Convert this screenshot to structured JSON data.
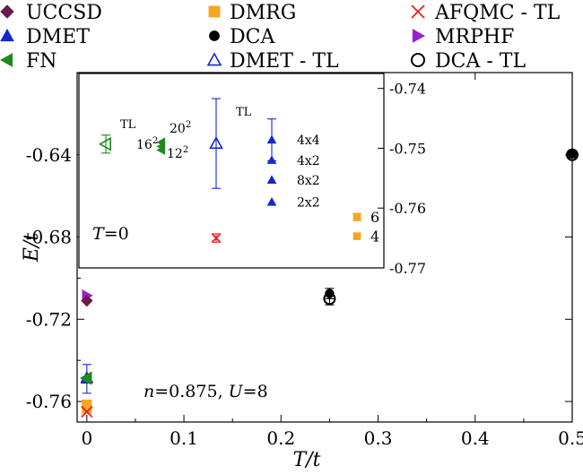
{
  "chart_data": [
    {
      "id": "main",
      "type": "scatter",
      "xlabel": "T/t",
      "ylabel": "E/t",
      "xlim": [
        -0.01,
        0.5
      ],
      "ylim": [
        -0.77,
        -0.6
      ],
      "xticks": [
        0,
        0.1,
        0.2,
        0.3,
        0.4,
        0.5
      ],
      "xtick_labels": [
        "0",
        "0.1",
        "0.2",
        "0.3",
        "0.4",
        "0.5"
      ],
      "yticks": [
        -0.76,
        -0.72,
        -0.68,
        -0.64
      ],
      "ytick_labels": [
        "-0.76",
        "-0.72",
        "-0.68",
        "-0.64"
      ],
      "grid": false,
      "legend_position": "top, above plot",
      "annotation": {
        "n": "n",
        "n_value": "=0.875, ",
        "u": "U",
        "u_value": "=8"
      },
      "series": [
        {
          "name": "UCCSD",
          "marker": "diamond-filled",
          "color": "#6a1b4d",
          "points": [
            {
              "x": 0.0,
              "y": -0.711
            }
          ]
        },
        {
          "name": "DMRG",
          "marker": "square-filled",
          "color": "#f5a623",
          "points": [
            {
              "x": 0.0,
              "y": -0.7615,
              "err": 0.0015
            },
            {
              "x": 0.0,
              "y": -0.7635
            }
          ]
        },
        {
          "name": "AFQMC - TL",
          "marker": "cross",
          "color": "#e8211c",
          "points": [
            {
              "x": 0.0,
              "y": -0.765
            }
          ]
        },
        {
          "name": "DMET",
          "marker": "triangle-up-filled",
          "color": "#1428d2",
          "points": [
            {
              "x": 0.0,
              "y": -0.749,
              "err": 0.007
            }
          ]
        },
        {
          "name": "DCA",
          "marker": "circle-filled",
          "color": "#000000",
          "points": [
            {
              "x": 0.25,
              "y": -0.7075,
              "err": 0.0025
            },
            {
              "x": 0.5,
              "y": -0.6395,
              "err": 0.0015
            }
          ]
        },
        {
          "name": "MRPHF",
          "marker": "triangle-right-filled",
          "color": "#9b1fd1",
          "points": [
            {
              "x": 0.0,
              "y": -0.7085
            }
          ]
        },
        {
          "name": "FN",
          "marker": "triangle-left-filled",
          "color": "#1e8a1e",
          "points": [
            {
              "x": 0.0,
              "y": -0.749
            }
          ]
        },
        {
          "name": "DMET - TL",
          "marker": "triangle-up-open",
          "color": "#1428d2",
          "points": [
            {
              "x": 0.0,
              "y": -0.7485
            }
          ]
        },
        {
          "name": "DCA - TL",
          "marker": "circle-open",
          "color": "#000000",
          "points": [
            {
              "x": 0.25,
              "y": -0.71,
              "err": 0.003
            },
            {
              "x": 0.5,
              "y": -0.64,
              "err": 0.0015
            }
          ]
        },
        {
          "name": "FN - TL",
          "marker": "triangle-left-open",
          "color": "#1e8a1e",
          "points": [
            {
              "x": 0.0,
              "y": -0.7485
            }
          ]
        }
      ]
    },
    {
      "id": "inset",
      "type": "scatter",
      "yaxis_side": "right",
      "ylim": [
        -0.77,
        -0.7375
      ],
      "yticks": [
        -0.74,
        -0.75,
        -0.76,
        -0.77
      ],
      "ytick_labels": [
        "-0.74",
        "-0.75",
        "-0.76",
        "-0.77"
      ],
      "annotation": {
        "t": "T",
        "t_value": "=0"
      },
      "series": [
        {
          "name": "FN - TL",
          "marker": "triangle-left-open",
          "color": "#1e8a1e",
          "points": [
            {
              "x": 1,
              "y": -0.7493,
              "err": 0.0015,
              "label": "TL"
            }
          ]
        },
        {
          "name": "FN",
          "marker": "triangle-left-filled",
          "color": "#1e8a1e",
          "points": [
            {
              "x": 2,
              "y": -0.749,
              "label": "20^2"
            },
            {
              "x": 2,
              "y": -0.7497,
              "label": "16^2"
            },
            {
              "x": 2,
              "y": -0.7503,
              "label": "12^2"
            }
          ]
        },
        {
          "name": "DMET - TL",
          "marker": "triangle-up-open",
          "color": "#1428d2",
          "points": [
            {
              "x": 3,
              "y": -0.7492,
              "err": 0.0075
            }
          ]
        },
        {
          "name": "AFQMC - TL",
          "marker": "cross",
          "color": "#e8211c",
          "points": [
            {
              "x": 3,
              "y": -0.765,
              "err": 0.0007
            }
          ]
        },
        {
          "name": "DMET",
          "marker": "triangle-up-filled",
          "color": "#1428d2",
          "points": [
            {
              "x": 4,
              "y": -0.7486,
              "err": 0.0035,
              "label": "4x4"
            },
            {
              "x": 4,
              "y": -0.752,
              "label": "4x2"
            },
            {
              "x": 4,
              "y": -0.7553,
              "label": "8x2"
            },
            {
              "x": 4,
              "y": -0.759,
              "label": "2x2"
            }
          ],
          "group_label": "TL"
        },
        {
          "name": "DMRG",
          "marker": "square-filled",
          "color": "#f5a623",
          "points": [
            {
              "x": 5,
              "y": -0.7615,
              "err": 0.0006,
              "label": "6"
            },
            {
              "x": 5,
              "y": -0.7647,
              "label": "4"
            }
          ]
        }
      ]
    }
  ]
}
